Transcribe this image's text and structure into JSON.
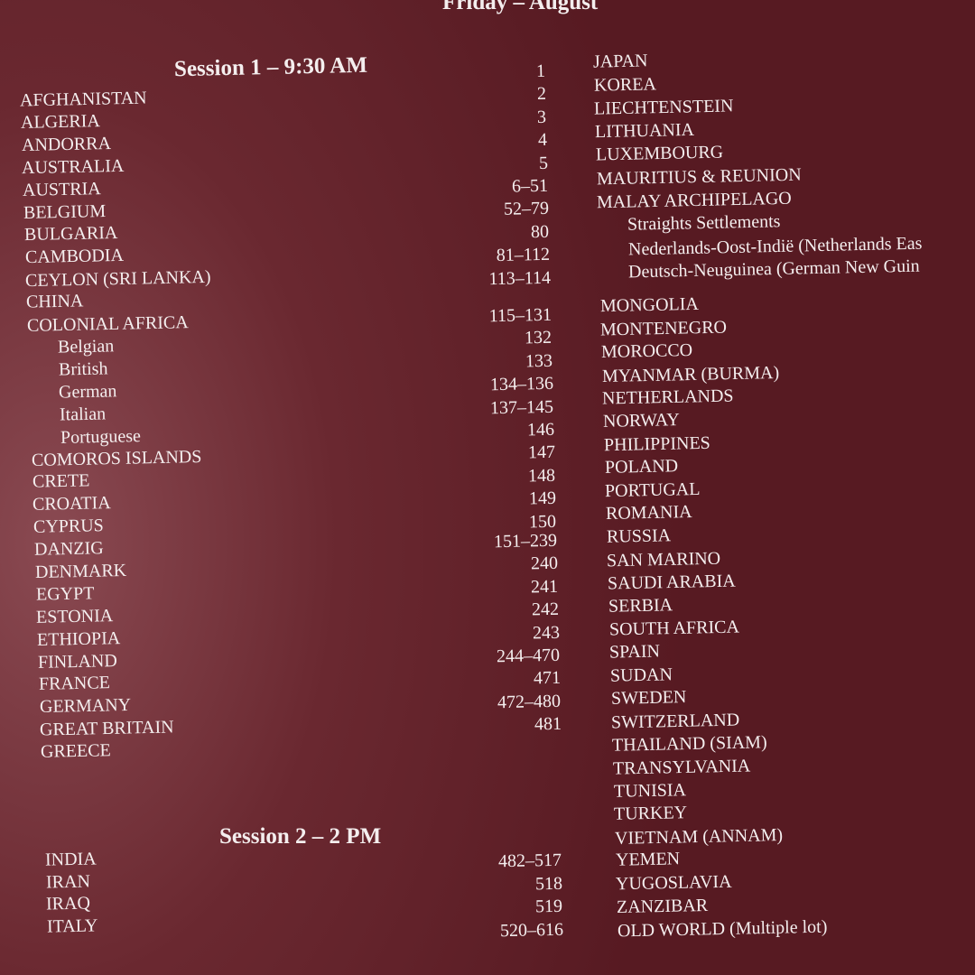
{
  "header": {
    "title": "Friday – August"
  },
  "session1": {
    "title": "Session 1 – 9:30 AM",
    "countries": [
      {
        "name": "AFGHANISTAN"
      },
      {
        "name": "ALGERIA"
      },
      {
        "name": "ANDORRA"
      },
      {
        "name": "AUSTRALIA"
      },
      {
        "name": "AUSTRIA"
      },
      {
        "name": "BELGIUM"
      },
      {
        "name": "BULGARIA"
      },
      {
        "name": "CAMBODIA"
      },
      {
        "name": "CEYLON (SRI LANKA)"
      },
      {
        "name": "CHINA"
      },
      {
        "name": "COLONIAL AFRICA",
        "sub": [
          "Belgian",
          "British",
          "German",
          "Italian",
          "Portuguese"
        ]
      },
      {
        "name": "COMOROS ISLANDS"
      },
      {
        "name": "CRETE"
      },
      {
        "name": "CROATIA"
      },
      {
        "name": "CYPRUS"
      },
      {
        "name": "DANZIG"
      },
      {
        "name": "DENMARK"
      },
      {
        "name": "EGYPT"
      },
      {
        "name": "ESTONIA"
      },
      {
        "name": "ETHIOPIA"
      },
      {
        "name": "FINLAND"
      },
      {
        "name": "FRANCE"
      },
      {
        "name": "GERMANY"
      },
      {
        "name": "GREAT BRITAIN"
      },
      {
        "name": "GREECE"
      }
    ],
    "lots": [
      "1",
      "2",
      "3",
      "4",
      "5",
      "6–51",
      "52–79",
      "80",
      "81–112",
      "113–114",
      "115–131",
      "132",
      "133",
      "134–136",
      "137–145",
      "146",
      "147",
      "148",
      "149",
      "150",
      "151–239",
      "240",
      "241",
      "242",
      "243",
      "244–470",
      "471",
      "472–480",
      "481"
    ]
  },
  "right_column": [
    {
      "name": "JAPAN"
    },
    {
      "name": "KOREA"
    },
    {
      "name": "LIECHTENSTEIN"
    },
    {
      "name": "LITHUANIA"
    },
    {
      "name": "LUXEMBOURG"
    },
    {
      "name": "MAURITIUS & REUNION"
    },
    {
      "name": "MALAY ARCHIPELAGO",
      "sub": [
        "Straights Settlements",
        "Nederlands-Oost-Indië (Netherlands Eas",
        "Deutsch-Neuguinea (German New Guin"
      ]
    },
    {
      "name": "MONGOLIA"
    },
    {
      "name": "MONTENEGRO"
    },
    {
      "name": "MOROCCO"
    },
    {
      "name": "MYANMAR (BURMA)"
    },
    {
      "name": "NETHERLANDS"
    },
    {
      "name": "NORWAY"
    },
    {
      "name": "PHILIPPINES"
    },
    {
      "name": "POLAND"
    },
    {
      "name": "PORTUGAL"
    },
    {
      "name": "ROMANIA"
    },
    {
      "name": "RUSSIA"
    },
    {
      "name": "SAN MARINO"
    },
    {
      "name": "SAUDI ARABIA"
    },
    {
      "name": "SERBIA"
    },
    {
      "name": "SOUTH AFRICA"
    },
    {
      "name": "SPAIN"
    },
    {
      "name": "SUDAN"
    },
    {
      "name": "SWEDEN"
    },
    {
      "name": "SWITZERLAND"
    },
    {
      "name": "THAILAND (SIAM)"
    },
    {
      "name": "TRANSYLVANIA"
    },
    {
      "name": "TUNISIA"
    },
    {
      "name": "TURKEY"
    },
    {
      "name": "VIETNAM (ANNAM)"
    },
    {
      "name": "YEMEN"
    },
    {
      "name": "YUGOSLAVIA"
    },
    {
      "name": "ZANZIBAR"
    },
    {
      "name": "OLD WORLD (Multiple lot)"
    }
  ],
  "session2": {
    "title": "Session 2 – 2 PM",
    "countries": [
      {
        "name": "INDIA"
      },
      {
        "name": "IRAN"
      },
      {
        "name": "IRAQ"
      },
      {
        "name": "ITALY"
      }
    ],
    "lots": [
      "482–517",
      "518",
      "519",
      "520–616"
    ]
  }
}
